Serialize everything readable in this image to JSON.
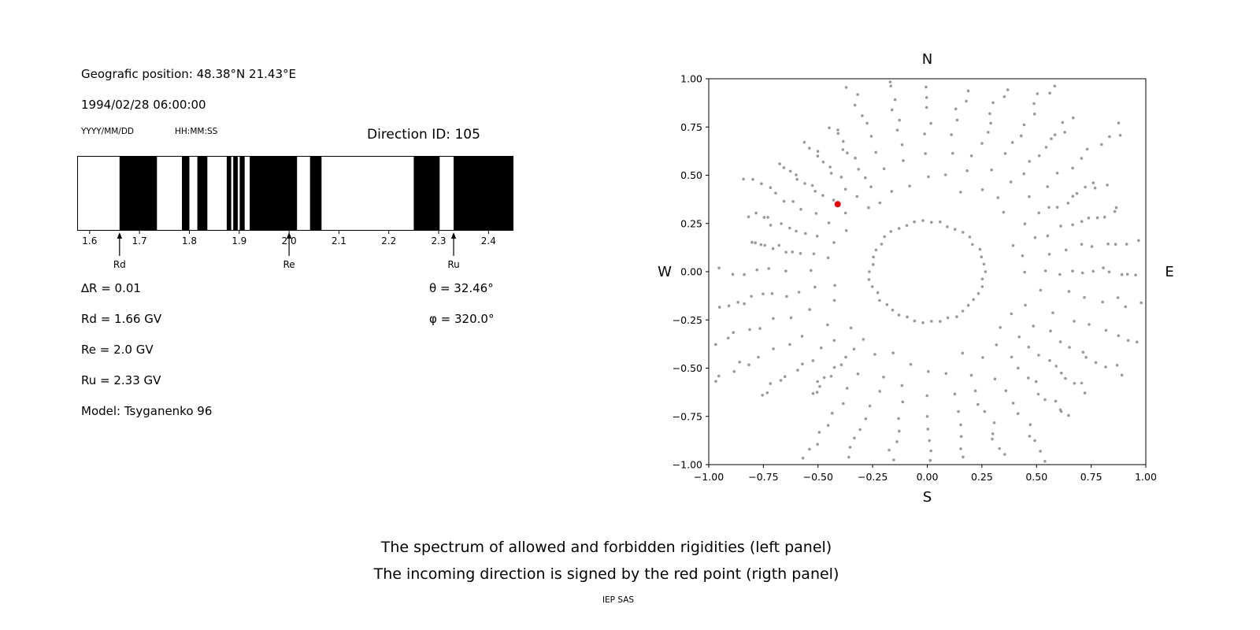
{
  "header": {
    "geographic_position": "Geografic position: 48.38°N 21.43°E",
    "datetime": "1994/02/28 06:00:00",
    "date_format_label": "YYYY/MM/DD",
    "time_format_label": "HH:MM:SS",
    "direction_id": "Direction ID: 105"
  },
  "parameters": {
    "delta_r": "∆R = 0.01",
    "theta": "θ = 32.46°",
    "rd": "Rd = 1.66 GV",
    "phi": "φ = 320.0°",
    "re": "Re = 2.0 GV",
    "ru": "Ru = 2.33 GV",
    "model": "Model: Tsyganenko 96"
  },
  "caption": {
    "line1": "The spectrum of allowed and forbidden rigidities (left panel)",
    "line2": "The incoming direction is signed by the red point (rigth panel)",
    "credit": "IEP SAS"
  },
  "chart_data": [
    {
      "name": "rigidity_spectrum",
      "type": "bar",
      "xlim": [
        1.575,
        2.45
      ],
      "tick_values": [
        1.6,
        1.7,
        1.8,
        1.9,
        2.0,
        2.1,
        2.2,
        2.3,
        2.4
      ],
      "tick_labels": [
        "1.6",
        "1.7",
        "1.8",
        "1.9",
        "2.0",
        "2.1",
        "2.2",
        "2.3",
        "2.4"
      ],
      "allowed_bands_gv": [
        [
          1.66,
          1.735
        ],
        [
          1.785,
          1.8
        ],
        [
          1.816,
          1.836
        ],
        [
          1.875,
          1.884
        ],
        [
          1.888,
          1.897
        ],
        [
          1.901,
          1.911
        ],
        [
          1.921,
          2.016
        ],
        [
          2.042,
          2.065
        ],
        [
          2.25,
          2.302
        ],
        [
          2.33,
          2.45
        ]
      ],
      "markers": [
        {
          "label": "Rd",
          "value": 1.66
        },
        {
          "label": "Re",
          "value": 2.0
        },
        {
          "label": "Ru",
          "value": 2.33
        }
      ],
      "band_color": "#000000",
      "background_color": "#ffffff",
      "grid": false,
      "legend": "none"
    },
    {
      "name": "incoming_direction_map",
      "type": "scatter",
      "xlim": [
        -1.0,
        1.0
      ],
      "ylim": [
        -1.0,
        1.0
      ],
      "tick_values": [
        -1.0,
        -0.75,
        -0.5,
        -0.25,
        0.0,
        0.25,
        0.5,
        0.75,
        1.0
      ],
      "tick_labels": [
        "−1.00",
        "−0.75",
        "−0.50",
        "−0.25",
        "0.00",
        "0.25",
        "0.50",
        "0.75",
        "1.00"
      ],
      "compass_labels": {
        "top": "N",
        "bottom": "S",
        "left": "W",
        "right": "E"
      },
      "red_point": {
        "x": -0.41,
        "y": 0.35
      },
      "dot_color": "#999999",
      "red_point_color": "#e60000",
      "spokes": {
        "count": 36,
        "inner_radius": 0.34,
        "outer_radius": 1.05,
        "dots_per_spoke": 11
      },
      "inner_ring": {
        "radius": 0.26,
        "count": 42
      },
      "grid": false,
      "legend": "none"
    }
  ]
}
